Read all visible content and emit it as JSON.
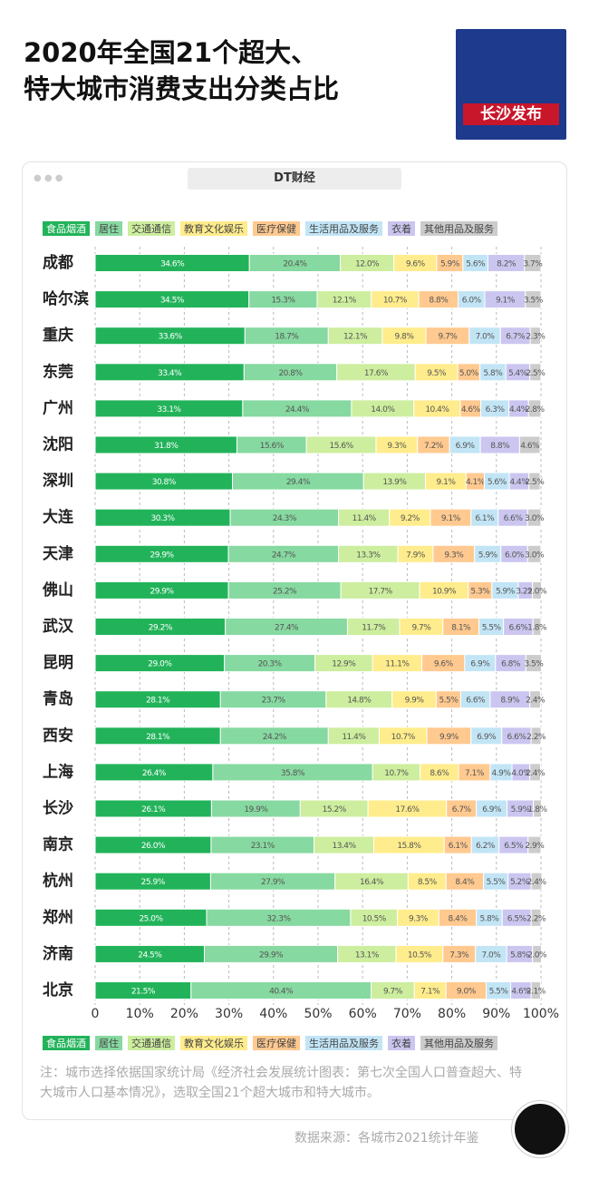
{
  "title": [
    "2020年全国21个超大、",
    "特大城市消费支出分类占比"
  ],
  "logo_text": "长沙发布",
  "window_tab": "DT财经",
  "chart_data": {
    "type": "stacked_bar_horizontal",
    "categories": [
      "成都",
      "哈尔滨",
      "重庆",
      "东莞",
      "广州",
      "沈阳",
      "深圳",
      "大连",
      "天津",
      "佛山",
      "武汉",
      "昆明",
      "青岛",
      "西安",
      "上海",
      "长沙",
      "南京",
      "杭州",
      "郑州",
      "济南",
      "北京"
    ],
    "series": [
      {
        "name": "食品烟酒",
        "color": "#22b35a",
        "values": [
          34.6,
          34.5,
          33.6,
          33.4,
          33.1,
          31.8,
          30.8,
          30.3,
          29.9,
          29.9,
          29.2,
          29.0,
          28.1,
          28.1,
          26.4,
          26.1,
          26.0,
          25.9,
          25.0,
          24.5,
          21.5
        ],
        "value_labels": [
          "34.6%",
          "34.5%",
          "33.6%",
          "33.4%",
          "33.1%",
          "31.8%",
          "30.8%",
          "30.3%",
          "29.9%",
          "29.9%",
          "29.2%",
          "29.0%",
          "28.1%",
          "28.1%",
          "26.4%",
          "26.1%",
          "26.0%",
          "25.9%",
          "25.0%",
          "24.5%",
          "21.5%"
        ]
      },
      {
        "name": "居住",
        "color": "#86d9a0",
        "values": [
          20.4,
          15.3,
          18.7,
          20.8,
          24.4,
          15.6,
          29.4,
          24.3,
          24.7,
          25.2,
          27.4,
          20.3,
          23.7,
          24.2,
          35.8,
          19.9,
          23.1,
          27.9,
          32.3,
          29.9,
          40.4
        ],
        "value_labels": [
          "20.4%",
          "15.3%",
          "18.7%",
          "20.8%",
          "24.4%",
          "15.6%",
          "29.4%",
          "24.3%",
          "24.7%",
          "25.2%",
          "27.4%",
          "20.3%",
          "23.7%",
          "24.2%",
          "35.8%",
          "19.9%",
          "23.1%",
          "27.9%",
          "32.3%",
          "29.9%",
          "40.4%"
        ]
      },
      {
        "name": "交通通信",
        "color": "#cdee9e",
        "values": [
          12.0,
          12.1,
          12.1,
          17.6,
          14.0,
          15.6,
          13.9,
          11.4,
          13.3,
          17.7,
          11.7,
          12.9,
          14.8,
          11.4,
          10.7,
          15.2,
          13.4,
          16.4,
          10.5,
          13.1,
          9.7
        ],
        "value_labels": [
          "12.0%",
          "12.1%",
          "12.1%",
          "17.6%",
          "14.0%",
          "15.6%",
          "13.9%",
          "11.4%",
          "13.3%",
          "17.7%",
          "11.7%",
          "12.9%",
          "14.8%",
          "11.4%",
          "10.7%",
          "15.2%",
          "13.4%",
          "16.4%",
          "10.5%",
          "13.1%",
          "9.7%"
        ]
      },
      {
        "name": "教育文化娱乐",
        "color": "#ffec8c",
        "values": [
          9.6,
          10.7,
          9.8,
          9.5,
          10.4,
          9.3,
          9.1,
          9.2,
          7.9,
          10.9,
          9.7,
          11.1,
          9.9,
          10.7,
          8.6,
          17.6,
          15.8,
          8.5,
          9.3,
          10.5,
          7.1
        ],
        "value_labels": [
          "9.6%",
          "10.7%",
          "9.8%",
          "9.5%",
          "10.4%",
          "9.3%",
          "9.1%",
          "9.2%",
          "7.9%",
          "10.9%",
          "9.7%",
          "11.1%",
          "9.9%",
          "10.7%",
          "8.6%",
          "17.6%",
          "15.8%",
          "8.5%",
          "9.3%",
          "10.5%",
          "7.1%"
        ]
      },
      {
        "name": "医疗保健",
        "color": "#ffc98f",
        "values": [
          5.9,
          8.8,
          9.7,
          5.0,
          4.6,
          7.2,
          4.1,
          9.1,
          9.3,
          5.3,
          8.1,
          9.6,
          5.5,
          9.9,
          7.1,
          6.7,
          6.1,
          8.4,
          8.4,
          7.3,
          9.0
        ],
        "value_labels": [
          "5.9%",
          "8.8%",
          "9.7%",
          "5.0%",
          "4.6%",
          "7.2%",
          "4.1%",
          "9.1%",
          "9.3%",
          "5.3%",
          "8.1%",
          "9.6%",
          "5.5%",
          "9.9%",
          "7.1%",
          "6.7%",
          "6.1%",
          "8.4%",
          "8.4%",
          "7.3%",
          "9.0%"
        ]
      },
      {
        "name": "生活用品及服务",
        "color": "#c2e5f6",
        "values": [
          5.6,
          6.0,
          7.0,
          5.8,
          6.3,
          6.9,
          5.6,
          6.1,
          5.9,
          5.9,
          5.5,
          6.9,
          6.6,
          6.9,
          4.9,
          6.9,
          6.2,
          5.5,
          5.8,
          7.0,
          5.5
        ],
        "value_labels": [
          "5.6%",
          "6.0%",
          "7.0%",
          "5.8%",
          "6.3%",
          "6.9%",
          "5.6%",
          "6.1%",
          "5.9%",
          "5.9%",
          "5.5%",
          "6.9%",
          "6.6%",
          "6.9%",
          "4.9%",
          "6.9%",
          "6.2%",
          "5.5%",
          "5.8%",
          "7.0%",
          "5.5%"
        ]
      },
      {
        "name": "衣着",
        "color": "#cbc6f0",
        "values": [
          8.2,
          9.1,
          6.7,
          5.4,
          4.4,
          8.8,
          4.4,
          6.6,
          6.0,
          3.2,
          6.6,
          6.8,
          8.9,
          6.6,
          4.0,
          5.9,
          6.5,
          5.2,
          6.5,
          5.8,
          4.6
        ],
        "value_labels": [
          "8.2%",
          "9.1%",
          "6.7%",
          "5.4%",
          "4.4%",
          "8.8%",
          "4.4%",
          "6.6%",
          "6.0%",
          "3.2%",
          "6.6%",
          "6.8%",
          "8.9%",
          "6.6%",
          "4.0%",
          "5.9%",
          "6.5%",
          "5.2%",
          "6.5%",
          "5.8%",
          "4.6%"
        ]
      },
      {
        "name": "其他用品及服务",
        "color": "#cccccc",
        "values": [
          3.7,
          3.5,
          2.3,
          2.5,
          2.8,
          4.6,
          2.5,
          3.0,
          3.0,
          2.0,
          1.8,
          3.5,
          2.4,
          2.2,
          2.4,
          1.8,
          2.9,
          2.4,
          2.2,
          2.0,
          2.1
        ],
        "value_labels": [
          "3.7%",
          "3.5%",
          "2.3%",
          "2.5%",
          "2.8%",
          "4.6%",
          "2.5%",
          "3.0%",
          "3.0%",
          "2.0%",
          "1.8%",
          "3.5%",
          "2.4%",
          "2.2%",
          "2.4%",
          "1.8%",
          "2.9%",
          "2.4%",
          "2.2%",
          "2.0%",
          "2.1%"
        ]
      }
    ],
    "xlim": [
      0,
      100
    ],
    "xticks": [
      0,
      {
        "value": 10,
        "label": "10%"
      },
      {
        "value": 20,
        "label": "20%"
      },
      {
        "value": 30,
        "label": "30%"
      },
      {
        "value": 40,
        "label": "40%"
      },
      {
        "value": 50,
        "label": "50%"
      },
      {
        "value": 60,
        "label": "60%"
      },
      {
        "value": 70,
        "label": "70%"
      },
      {
        "value": 80,
        "label": "80%"
      },
      {
        "value": 90,
        "label": "90%"
      },
      {
        "value": 100,
        "label": "100%"
      }
    ],
    "grid": true
  },
  "note": "注：城市选择依据国家统计局《经济社会发展统计图表：第七次全国人口普查超大、特大城市人口基本情况》，选取全国21个超大城市和特大城市。",
  "source": "数据来源：各城市2021统计年鉴"
}
